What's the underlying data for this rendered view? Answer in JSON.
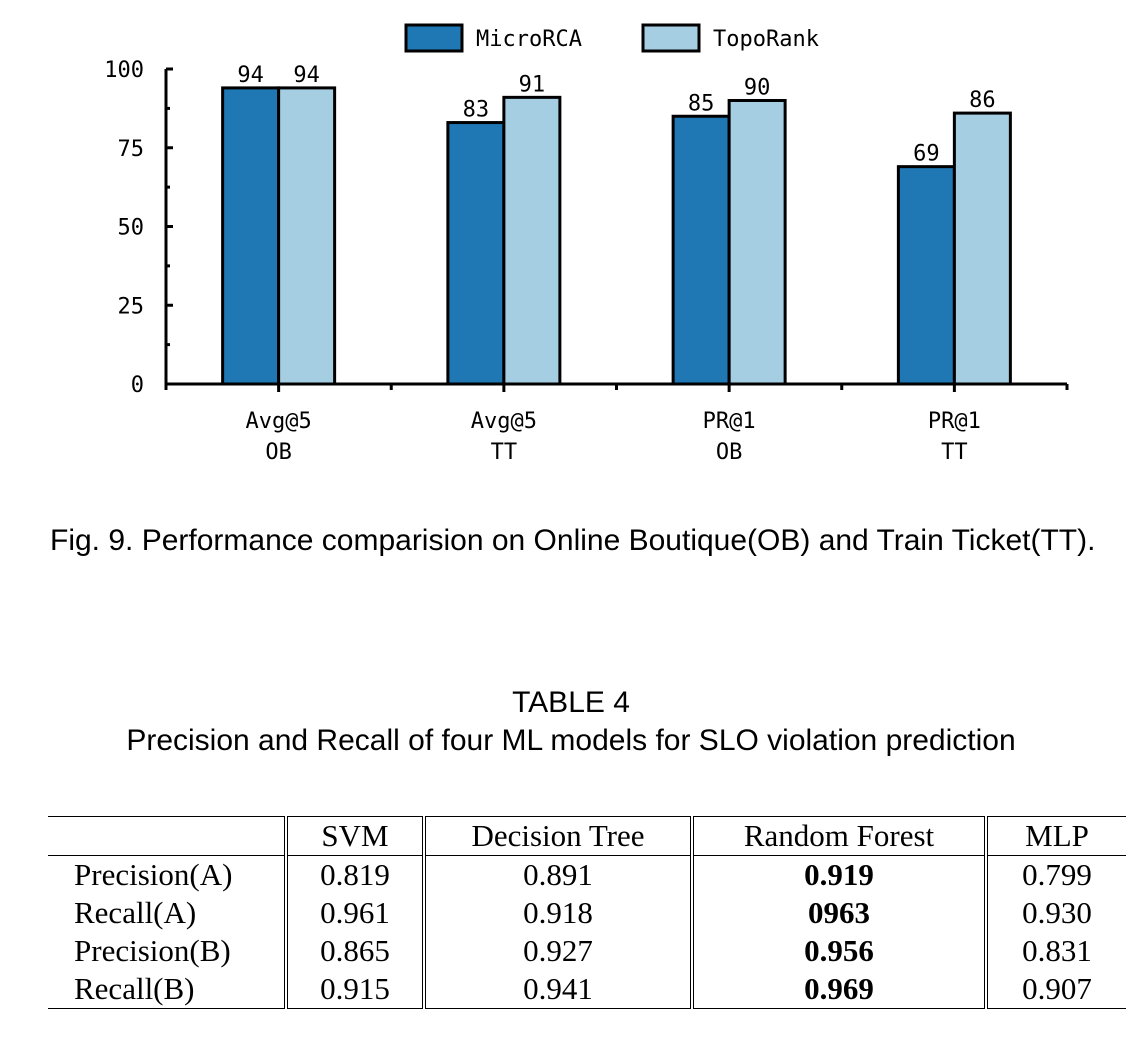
{
  "figure": {
    "caption": "Fig. 9. Performance comparision on Online Boutique(OB) and Train Ticket(TT)."
  },
  "chart_data": {
    "type": "bar",
    "categories": [
      [
        "Avg@5",
        "OB"
      ],
      [
        "Avg@5",
        "TT"
      ],
      [
        "PR@1",
        "OB"
      ],
      [
        "PR@1",
        "TT"
      ]
    ],
    "series": [
      {
        "name": "MicroRCA",
        "values": [
          94,
          83,
          85,
          69
        ],
        "color": "#1f77b4"
      },
      {
        "name": "TopoRank",
        "values": [
          94,
          91,
          90,
          86
        ],
        "color": "#a6cee3"
      }
    ],
    "yticks": [
      0,
      25,
      50,
      75,
      100
    ],
    "ylim": [
      0,
      100
    ],
    "grid": false,
    "legend": "top-center",
    "title": "",
    "xlabel": "",
    "ylabel": ""
  },
  "table": {
    "number": "TABLE 4",
    "title": "Precision and Recall of four ML models for SLO violation prediction",
    "columns": [
      "",
      "SVM",
      "Decision Tree",
      "Random Forest",
      "MLP"
    ],
    "rows": [
      {
        "label": "Precision(A)",
        "values": [
          "0.819",
          "0.891",
          "0.919",
          "0.799"
        ]
      },
      {
        "label": "Recall(A)",
        "values": [
          "0.961",
          "0.918",
          "0963",
          "0.930"
        ]
      },
      {
        "label": "Precision(B)",
        "values": [
          "0.865",
          "0.927",
          "0.956",
          "0.831"
        ]
      },
      {
        "label": "Recall(B)",
        "values": [
          "0.915",
          "0.941",
          "0.969",
          "0.907"
        ]
      }
    ],
    "bold_column": "Random Forest"
  }
}
